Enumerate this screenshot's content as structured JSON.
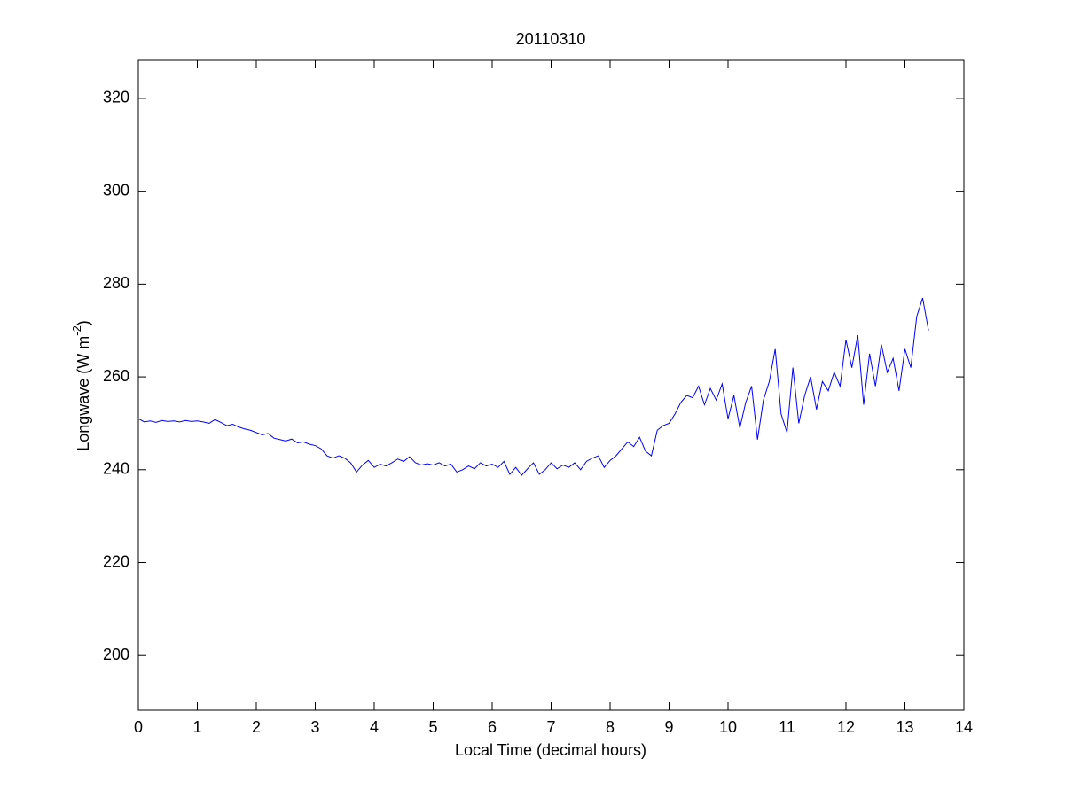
{
  "chart_data": {
    "type": "line",
    "title": "20110310",
    "xlabel": "Local Time (decimal hours)",
    "ylabel": {
      "text": "Longwave (W m",
      "sup": "-2",
      "end": ")"
    },
    "xlim": [
      0,
      14
    ],
    "xticks": [
      0,
      1,
      2,
      3,
      4,
      5,
      6,
      7,
      8,
      9,
      10,
      11,
      12,
      13,
      14
    ],
    "ylim": [
      188.2,
      328.2
    ],
    "yticks": [
      200,
      220,
      240,
      260,
      280,
      300,
      320
    ],
    "grid": false,
    "x": [
      0,
      0.1,
      0.2,
      0.3,
      0.4,
      0.5,
      0.6,
      0.7,
      0.8,
      0.9,
      1,
      1.1,
      1.2,
      1.3,
      1.4,
      1.5,
      1.6,
      1.7,
      1.8,
      1.9,
      2,
      2.1,
      2.2,
      2.3,
      2.4,
      2.5,
      2.6,
      2.7,
      2.8,
      2.9,
      3,
      3.1,
      3.2,
      3.3,
      3.4,
      3.5,
      3.6,
      3.7,
      3.8,
      3.9,
      4,
      4.1,
      4.2,
      4.3,
      4.4,
      4.5,
      4.6,
      4.7,
      4.8,
      4.9,
      5,
      5.1,
      5.2,
      5.3,
      5.4,
      5.5,
      5.6,
      5.7,
      5.8,
      5.9,
      6,
      6.1,
      6.2,
      6.3,
      6.4,
      6.5,
      6.6,
      6.7,
      6.8,
      6.9,
      7,
      7.1,
      7.2,
      7.3,
      7.4,
      7.5,
      7.6,
      7.7,
      7.8,
      7.9,
      8,
      8.1,
      8.2,
      8.3,
      8.4,
      8.5,
      8.6,
      8.7,
      8.8,
      8.9,
      9,
      9.1,
      9.2,
      9.3,
      9.4,
      9.5,
      9.6,
      9.7,
      9.8,
      9.9,
      10,
      10.1,
      10.2,
      10.3,
      10.4,
      10.5,
      10.6,
      10.7,
      10.8,
      10.9,
      11,
      11.1,
      11.2,
      11.3,
      11.4,
      11.5,
      11.6,
      11.7,
      11.8,
      11.9,
      12,
      12.1,
      12.2,
      12.3,
      12.4,
      12.5,
      12.6,
      12.7,
      12.8,
      12.9,
      13,
      13.1,
      13.2,
      13.3,
      13.4
    ],
    "series": [
      {
        "name": "Longwave",
        "color": "#0000ff",
        "values": [
          251,
          250.3,
          250.5,
          250.2,
          250.6,
          250.4,
          250.5,
          250.3,
          250.6,
          250.4,
          250.5,
          250.3,
          250.0,
          250.8,
          250.2,
          249.5,
          249.8,
          249.2,
          248.8,
          248.5,
          248.0,
          247.5,
          247.8,
          246.8,
          246.5,
          246.2,
          246.6,
          245.8,
          246.0,
          245.5,
          245.2,
          244.5,
          243.0,
          242.5,
          243.0,
          242.5,
          241.5,
          239.5,
          241.0,
          242.0,
          240.5,
          241.2,
          240.8,
          241.5,
          242.3,
          241.8,
          242.8,
          241.5,
          241.0,
          241.3,
          241.0,
          241.5,
          240.8,
          241.2,
          239.5,
          240.0,
          240.8,
          240.2,
          241.5,
          240.8,
          241.2,
          240.5,
          241.8,
          239.0,
          240.5,
          238.8,
          240.2,
          241.5,
          239.0,
          240.0,
          241.5,
          240.2,
          241.0,
          240.5,
          241.5,
          240.0,
          241.8,
          242.5,
          243.0,
          240.5,
          242.0,
          243.0,
          244.5,
          246.0,
          245.0,
          247.0,
          244.0,
          243.0,
          248.5,
          249.5,
          250.0,
          252.0,
          254.5,
          256.0,
          255.5,
          258.0,
          254.0,
          257.5,
          255.0,
          258.5,
          251,
          256,
          249,
          254.5,
          258,
          246.5,
          255,
          259,
          266,
          252,
          248,
          262,
          250,
          256,
          260,
          253,
          259,
          257,
          261,
          258,
          268,
          262,
          269,
          254,
          265,
          258,
          267,
          261,
          264,
          257,
          266,
          262,
          273,
          277,
          270
        ]
      }
    ]
  }
}
